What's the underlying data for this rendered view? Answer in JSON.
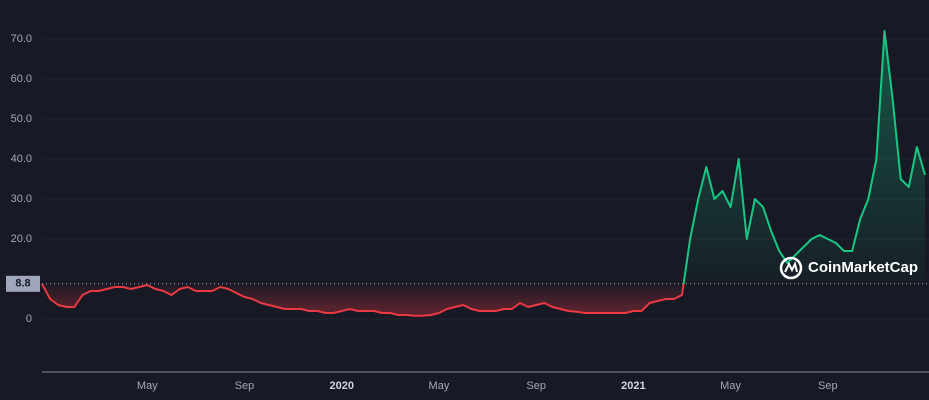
{
  "chart_data": {
    "type": "line",
    "watermark": "CoinMarketCap",
    "categories": [
      null,
      null,
      null,
      null,
      null,
      null,
      null,
      null,
      null,
      null,
      null,
      null,
      null,
      "May",
      null,
      null,
      null,
      null,
      null,
      null,
      null,
      null,
      null,
      null,
      null,
      "Sep",
      null,
      null,
      null,
      null,
      null,
      null,
      null,
      null,
      null,
      null,
      null,
      "2020",
      null,
      null,
      null,
      null,
      null,
      null,
      null,
      null,
      null,
      null,
      null,
      "May",
      null,
      null,
      null,
      null,
      null,
      null,
      null,
      null,
      null,
      null,
      null,
      "Sep",
      null,
      null,
      null,
      null,
      null,
      null,
      null,
      null,
      null,
      null,
      null,
      "2021",
      null,
      null,
      null,
      null,
      null,
      null,
      null,
      null,
      null,
      null,
      null,
      "May",
      null,
      null,
      null,
      null,
      null,
      null,
      null,
      null,
      null,
      null,
      null,
      "Sep",
      null,
      null,
      null,
      null,
      null,
      null,
      null,
      null,
      null,
      null,
      null,
      null
    ],
    "values": [
      8.8,
      5,
      3.5,
      3,
      3,
      6,
      7,
      7,
      7.5,
      8,
      8,
      7.5,
      8,
      8.5,
      7.5,
      7,
      6,
      7.5,
      8,
      7,
      7,
      7,
      8,
      7.5,
      6.5,
      5.5,
      5,
      4,
      3.5,
      3,
      2.5,
      2.5,
      2.5,
      2,
      2,
      1.5,
      1.5,
      2,
      2.5,
      2,
      2,
      2,
      1.5,
      1.5,
      1,
      1,
      0.8,
      0.8,
      1,
      1.5,
      2.5,
      3,
      3.5,
      2.5,
      2,
      2,
      2,
      2.5,
      2.5,
      4,
      3,
      3.5,
      4,
      3,
      2.5,
      2,
      1.8,
      1.5,
      1.5,
      1.5,
      1.5,
      1.5,
      1.5,
      2,
      2,
      4,
      4.5,
      5,
      5,
      6,
      20,
      30,
      38,
      30,
      32,
      28,
      40,
      20,
      30,
      28,
      22,
      17,
      14,
      16,
      18,
      20,
      21,
      20,
      19,
      17,
      17,
      25,
      30,
      40,
      72,
      55,
      35,
      33,
      43,
      36
    ],
    "baseline": 8.8,
    "colors": {
      "up": "#16c784",
      "down": "#ea3943"
    },
    "ylim": [
      -13.25,
      79.75
    ],
    "yticks": [
      0,
      {
        "value": 20,
        "label": "20.0"
      },
      {
        "value": 30,
        "label": "30.0"
      },
      {
        "value": 40,
        "label": "40.0"
      },
      {
        "value": 50,
        "label": "50.0"
      },
      {
        "value": 60,
        "label": "60.0"
      },
      {
        "value": 70,
        "label": "70.0"
      }
    ],
    "grid": true
  }
}
